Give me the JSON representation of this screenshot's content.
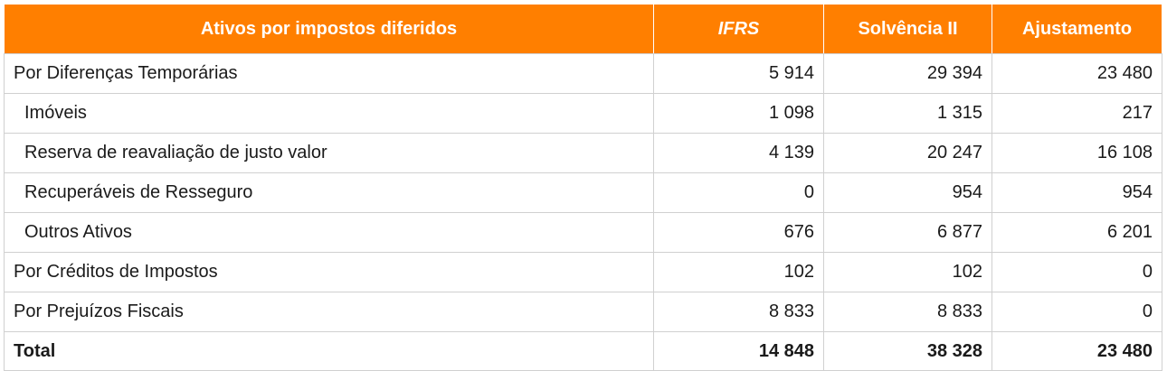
{
  "table": {
    "headers": [
      "Ativos por impostos diferidos",
      "IFRS",
      "Solvência II",
      "Ajustamento"
    ],
    "rows": [
      {
        "label": "Por Diferenças Temporárias",
        "ifrs": "5 914",
        "solvencia": "29 394",
        "ajustamento": "23 480"
      },
      {
        "label": "Imóveis",
        "ifrs": "1 098",
        "solvencia": "1 315",
        "ajustamento": "217"
      },
      {
        "label": "Reserva de reavaliação de justo valor",
        "ifrs": "4 139",
        "solvencia": "20 247",
        "ajustamento": "16 108"
      },
      {
        "label": "Recuperáveis de Resseguro",
        "ifrs": "0",
        "solvencia": "954",
        "ajustamento": "954"
      },
      {
        "label": "Outros Ativos",
        "ifrs": "676",
        "solvencia": "6 877",
        "ajustamento": "6 201"
      },
      {
        "label": "Por Créditos de Impostos",
        "ifrs": "102",
        "solvencia": "102",
        "ajustamento": "0"
      },
      {
        "label": "Por Prejuízos Fiscais",
        "ifrs": "8 833",
        "solvencia": "8 833",
        "ajustamento": "0"
      }
    ],
    "total": {
      "label": "Total",
      "ifrs": "14 848",
      "solvencia": "38 328",
      "ajustamento": "23 480"
    }
  },
  "colors": {
    "header_bg": "#ff7f00",
    "header_text": "#ffffff",
    "border": "#d0d0d0"
  }
}
